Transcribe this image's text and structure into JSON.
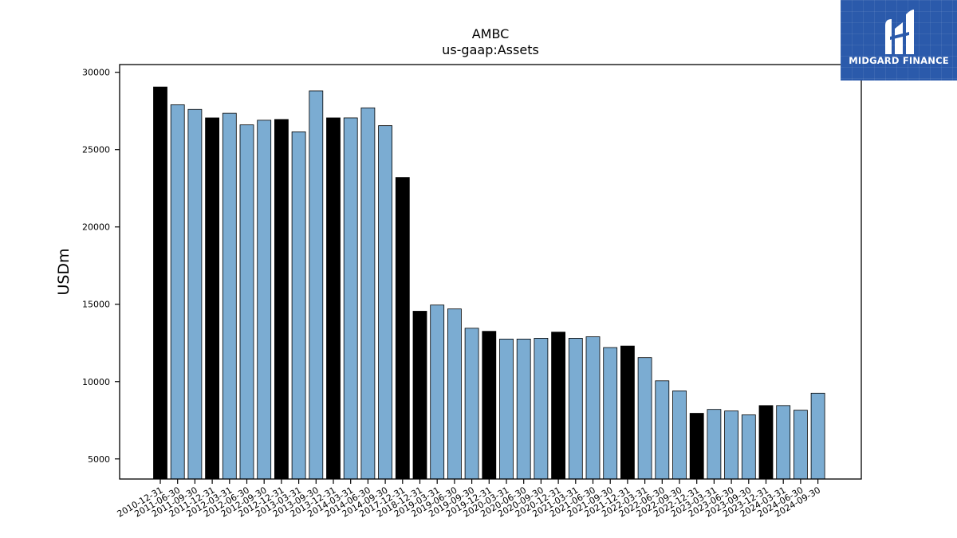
{
  "brand": {
    "name": "MIDGARD FINANCE",
    "logo_icon": "midgard-finance-logo-icon",
    "background_color": "#2b5aab"
  },
  "colors": {
    "bar_highlight": "#000000",
    "bar_normal": "#7bacd2",
    "bar_edge": "#000000"
  },
  "chart_data": {
    "type": "bar",
    "title": "AMBC",
    "subtitle": "us-gaap:Assets",
    "xlabel": "",
    "ylabel": "USDm",
    "ylim": [
      3700,
      30500
    ],
    "yticks": [
      5000,
      10000,
      15000,
      20000,
      25000,
      30000
    ],
    "grid": false,
    "categories": [
      "2010-12-31",
      "2011-06-30",
      "2011-09-30",
      "2011-12-31",
      "2012-03-31",
      "2012-06-30",
      "2012-09-30",
      "2012-12-31",
      "2013-03-31",
      "2013-09-30",
      "2013-12-31",
      "2014-03-31",
      "2014-06-30",
      "2014-09-30",
      "2017-12-31",
      "2018-12-31",
      "2019-03-31",
      "2019-06-30",
      "2019-09-30",
      "2019-12-31",
      "2020-03-31",
      "2020-06-30",
      "2020-09-30",
      "2020-12-31",
      "2021-03-31",
      "2021-06-30",
      "2021-09-30",
      "2021-12-31",
      "2022-03-31",
      "2022-06-30",
      "2022-09-30",
      "2022-12-31",
      "2023-03-31",
      "2023-06-30",
      "2023-09-30",
      "2023-12-31",
      "2024-03-31",
      "2024-06-30",
      "2024-09-30"
    ],
    "values": [
      29050,
      27900,
      27600,
      27050,
      27350,
      26600,
      26900,
      26950,
      26150,
      28800,
      27050,
      27050,
      27700,
      26550,
      23200,
      14550,
      14950,
      14700,
      13450,
      13250,
      12750,
      12750,
      12800,
      13200,
      12800,
      12900,
      12200,
      12300,
      11550,
      10050,
      9400,
      7950,
      8200,
      8100,
      7850,
      8450,
      8450,
      8150,
      9250
    ],
    "highlighted": [
      true,
      false,
      false,
      true,
      false,
      false,
      false,
      true,
      false,
      false,
      true,
      false,
      false,
      false,
      true,
      true,
      false,
      false,
      false,
      true,
      false,
      false,
      false,
      true,
      false,
      false,
      false,
      true,
      false,
      false,
      false,
      true,
      false,
      false,
      false,
      true,
      false,
      false,
      false
    ]
  }
}
